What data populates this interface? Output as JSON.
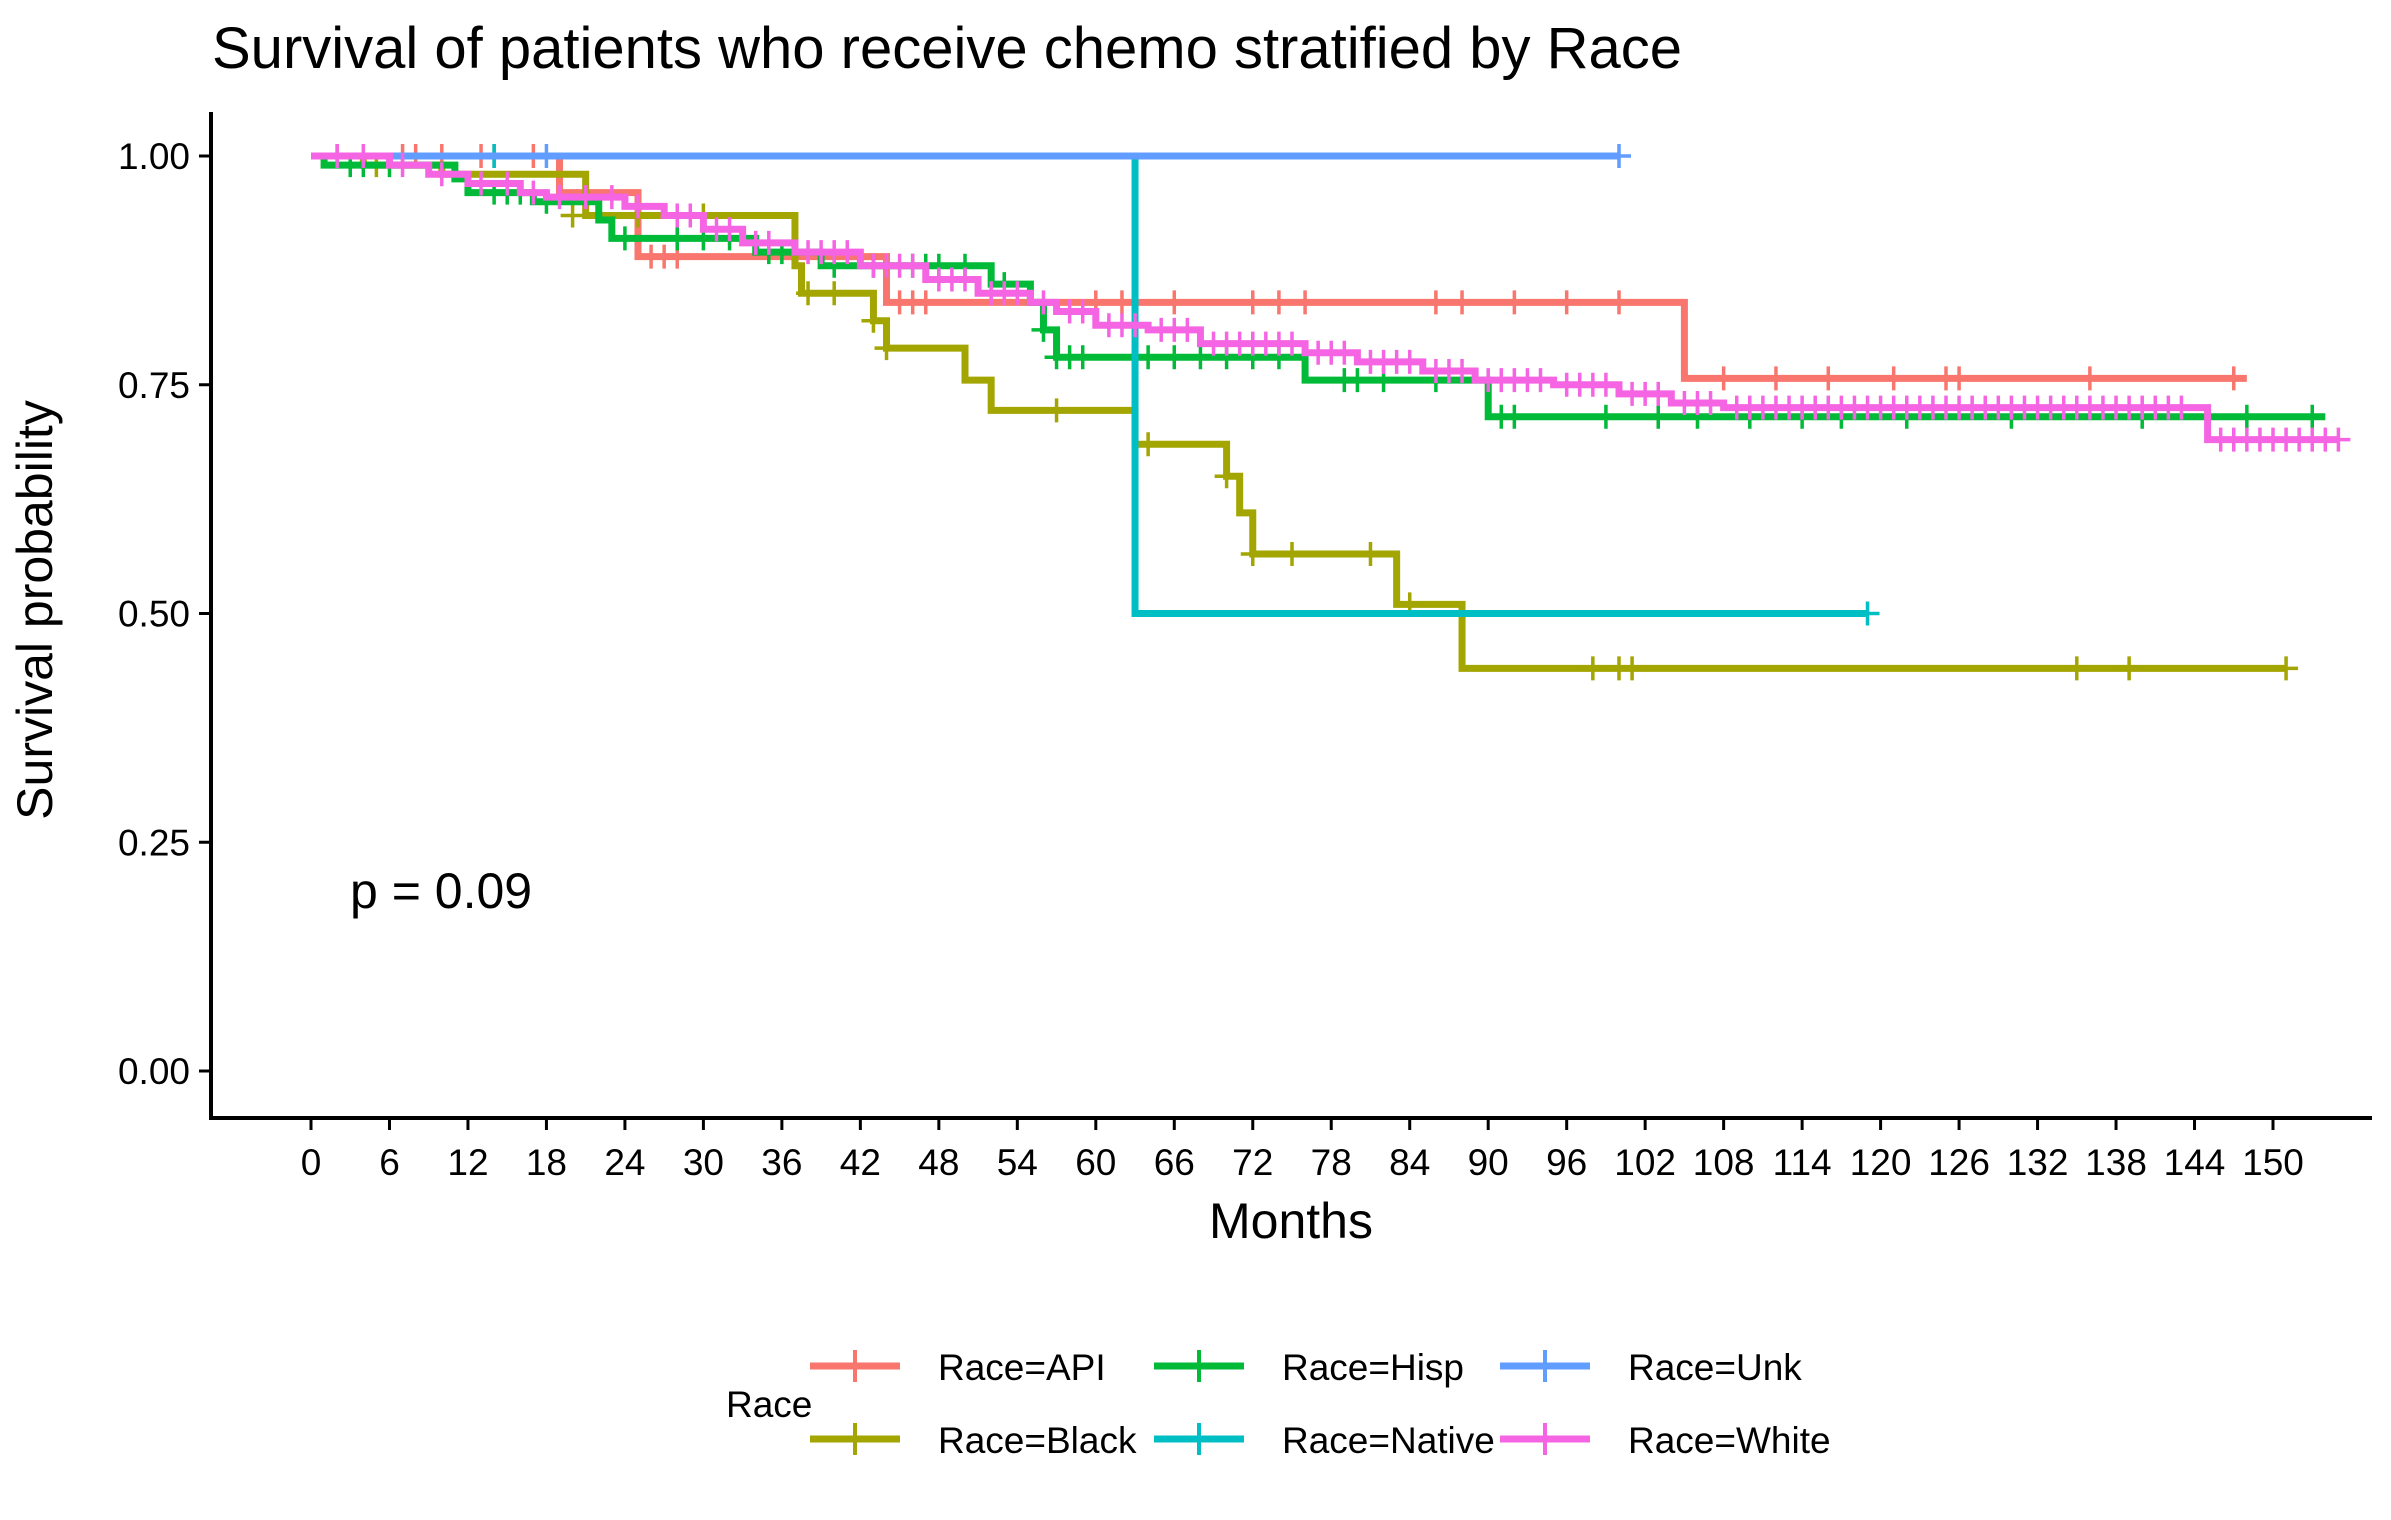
{
  "chart_data": {
    "type": "line",
    "subtype": "step",
    "title": "Survival of patients who receive chemo stratified by Race",
    "xlabel": "Months",
    "ylabel": "Survival probability",
    "xlim": [
      0,
      158
    ],
    "ylim": [
      0,
      1
    ],
    "x_ticks": [
      "0",
      "6",
      "12",
      "18",
      "24",
      "30",
      "36",
      "42",
      "48",
      "54",
      "60",
      "66",
      "72",
      "78",
      "84",
      "90",
      "96",
      "102",
      "108",
      "114",
      "120",
      "126",
      "132",
      "138",
      "144",
      "150"
    ],
    "y_ticks": [
      "0.00",
      "0.25",
      "0.50",
      "0.75",
      "1.00"
    ],
    "grid": false,
    "annotation": "p = 0.09",
    "legend": {
      "title": "Race",
      "placement": "bottom",
      "entries": [
        "Race=API",
        "Race=Hisp",
        "Race=Unk",
        "Race=Black",
        "Race=Native",
        "Race=White"
      ]
    },
    "series": [
      {
        "name": "Race=API",
        "color": "#F8766D",
        "steps": [
          [
            0,
            1.0
          ],
          [
            19,
            0.96
          ],
          [
            25,
            0.89
          ],
          [
            44,
            0.84
          ],
          [
            105,
            0.757
          ],
          [
            148,
            0.757
          ]
        ],
        "censored": [
          [
            2,
            1.0
          ],
          [
            7,
            1.0
          ],
          [
            8,
            1.0
          ],
          [
            10,
            1.0
          ],
          [
            13,
            1.0
          ],
          [
            14,
            1.0
          ],
          [
            17,
            1.0
          ],
          [
            26,
            0.89
          ],
          [
            27,
            0.89
          ],
          [
            28,
            0.89
          ],
          [
            45,
            0.84
          ],
          [
            46,
            0.84
          ],
          [
            47,
            0.84
          ],
          [
            60,
            0.84
          ],
          [
            62,
            0.84
          ],
          [
            66,
            0.84
          ],
          [
            72,
            0.84
          ],
          [
            74,
            0.84
          ],
          [
            76,
            0.84
          ],
          [
            86,
            0.84
          ],
          [
            88,
            0.84
          ],
          [
            92,
            0.84
          ],
          [
            96,
            0.84
          ],
          [
            100,
            0.84
          ],
          [
            108,
            0.757
          ],
          [
            112,
            0.757
          ],
          [
            116,
            0.757
          ],
          [
            121,
            0.757
          ],
          [
            125,
            0.757
          ],
          [
            126,
            0.757
          ],
          [
            136,
            0.757
          ],
          [
            147,
            0.757
          ]
        ]
      },
      {
        "name": "Race=Black",
        "color": "#A3A500",
        "steps": [
          [
            0,
            1.0
          ],
          [
            4,
            0.99
          ],
          [
            10,
            0.98
          ],
          [
            21,
            0.935
          ],
          [
            37,
            0.88
          ],
          [
            37.5,
            0.85
          ],
          [
            43,
            0.82
          ],
          [
            44,
            0.79
          ],
          [
            50,
            0.755
          ],
          [
            52,
            0.722
          ],
          [
            63,
            0.685
          ],
          [
            70,
            0.65
          ],
          [
            71,
            0.61
          ],
          [
            72,
            0.565
          ],
          [
            83,
            0.51
          ],
          [
            88,
            0.44
          ],
          [
            151,
            0.44
          ]
        ],
        "censored": [
          [
            5,
            0.99
          ],
          [
            20,
            0.935
          ],
          [
            25,
            0.935
          ],
          [
            30,
            0.935
          ],
          [
            38,
            0.85
          ],
          [
            40,
            0.85
          ],
          [
            43,
            0.82
          ],
          [
            44,
            0.79
          ],
          [
            57,
            0.722
          ],
          [
            64,
            0.685
          ],
          [
            70,
            0.65
          ],
          [
            72,
            0.565
          ],
          [
            75,
            0.565
          ],
          [
            81,
            0.565
          ],
          [
            84,
            0.51
          ],
          [
            98,
            0.44
          ],
          [
            100,
            0.44
          ],
          [
            101,
            0.44
          ],
          [
            135,
            0.44
          ],
          [
            139,
            0.44
          ],
          [
            151,
            0.44
          ]
        ]
      },
      {
        "name": "Race=Hisp",
        "color": "#00BA38",
        "steps": [
          [
            0,
            1.0
          ],
          [
            1,
            0.99
          ],
          [
            11,
            0.975
          ],
          [
            12,
            0.96
          ],
          [
            17,
            0.95
          ],
          [
            22,
            0.93
          ],
          [
            23,
            0.91
          ],
          [
            34,
            0.895
          ],
          [
            39,
            0.88
          ],
          [
            52,
            0.86
          ],
          [
            55,
            0.84
          ],
          [
            56,
            0.81
          ],
          [
            57,
            0.78
          ],
          [
            76,
            0.755
          ],
          [
            90,
            0.715
          ],
          [
            154,
            0.715
          ]
        ],
        "censored": [
          [
            3,
            0.99
          ],
          [
            4,
            0.99
          ],
          [
            6,
            0.99
          ],
          [
            14,
            0.96
          ],
          [
            15,
            0.96
          ],
          [
            16,
            0.96
          ],
          [
            18,
            0.95
          ],
          [
            24,
            0.91
          ],
          [
            28,
            0.91
          ],
          [
            30,
            0.91
          ],
          [
            32,
            0.91
          ],
          [
            35,
            0.895
          ],
          [
            36,
            0.895
          ],
          [
            40,
            0.88
          ],
          [
            43,
            0.88
          ],
          [
            46,
            0.88
          ],
          [
            47,
            0.88
          ],
          [
            48,
            0.88
          ],
          [
            50,
            0.88
          ],
          [
            53,
            0.86
          ],
          [
            56,
            0.81
          ],
          [
            57,
            0.78
          ],
          [
            58,
            0.78
          ],
          [
            59,
            0.78
          ],
          [
            64,
            0.78
          ],
          [
            66,
            0.78
          ],
          [
            68,
            0.78
          ],
          [
            70,
            0.78
          ],
          [
            72,
            0.78
          ],
          [
            74,
            0.78
          ],
          [
            79,
            0.755
          ],
          [
            80,
            0.755
          ],
          [
            82,
            0.755
          ],
          [
            86,
            0.755
          ],
          [
            91,
            0.715
          ],
          [
            92,
            0.715
          ],
          [
            99,
            0.715
          ],
          [
            103,
            0.715
          ],
          [
            106,
            0.715
          ],
          [
            110,
            0.715
          ],
          [
            114,
            0.715
          ],
          [
            117,
            0.715
          ],
          [
            122,
            0.715
          ],
          [
            130,
            0.715
          ],
          [
            140,
            0.715
          ],
          [
            148,
            0.715
          ],
          [
            153,
            0.715
          ]
        ]
      },
      {
        "name": "Race=Native",
        "color": "#00BFC4",
        "steps": [
          [
            0,
            1.0
          ],
          [
            63,
            0.5
          ],
          [
            119,
            0.5
          ]
        ],
        "censored": [
          [
            14,
            1.0
          ],
          [
            119,
            0.5
          ]
        ]
      },
      {
        "name": "Race=Unk",
        "color": "#619CFF",
        "steps": [
          [
            0,
            1.0
          ],
          [
            100,
            1.0
          ]
        ],
        "censored": [
          [
            18,
            1.0
          ],
          [
            100,
            1.0
          ]
        ]
      },
      {
        "name": "Race=White",
        "color": "#F564E3",
        "steps": [
          [
            0,
            1.0
          ],
          [
            6,
            0.99
          ],
          [
            9,
            0.98
          ],
          [
            12,
            0.97
          ],
          [
            16,
            0.96
          ],
          [
            18,
            0.955
          ],
          [
            24,
            0.945
          ],
          [
            27,
            0.935
          ],
          [
            30,
            0.92
          ],
          [
            33,
            0.905
          ],
          [
            37,
            0.895
          ],
          [
            42,
            0.88
          ],
          [
            47,
            0.865
          ],
          [
            51,
            0.85
          ],
          [
            55,
            0.84
          ],
          [
            57,
            0.83
          ],
          [
            60,
            0.815
          ],
          [
            64,
            0.81
          ],
          [
            68,
            0.795
          ],
          [
            76,
            0.785
          ],
          [
            80,
            0.775
          ],
          [
            85,
            0.765
          ],
          [
            89,
            0.755
          ],
          [
            95,
            0.75
          ],
          [
            100,
            0.74
          ],
          [
            104,
            0.73
          ],
          [
            108,
            0.725
          ],
          [
            145,
            0.69
          ],
          [
            155,
            0.69
          ]
        ],
        "censored": [
          [
            2,
            1.0
          ],
          [
            4,
            1.0
          ],
          [
            7,
            0.99
          ],
          [
            10,
            0.98
          ],
          [
            13,
            0.97
          ],
          [
            15,
            0.97
          ],
          [
            17,
            0.96
          ],
          [
            19,
            0.955
          ],
          [
            21,
            0.955
          ],
          [
            23,
            0.955
          ],
          [
            25,
            0.945
          ],
          [
            28,
            0.935
          ],
          [
            29,
            0.935
          ],
          [
            31,
            0.92
          ],
          [
            32,
            0.92
          ],
          [
            34,
            0.905
          ],
          [
            35,
            0.905
          ],
          [
            38,
            0.895
          ],
          [
            39,
            0.895
          ],
          [
            40,
            0.895
          ],
          [
            41,
            0.895
          ],
          [
            43,
            0.88
          ],
          [
            44,
            0.88
          ],
          [
            45,
            0.88
          ],
          [
            46,
            0.88
          ],
          [
            48,
            0.865
          ],
          [
            49,
            0.865
          ],
          [
            50,
            0.865
          ],
          [
            52,
            0.85
          ],
          [
            53,
            0.85
          ],
          [
            54,
            0.85
          ],
          [
            56,
            0.84
          ],
          [
            58,
            0.83
          ],
          [
            59,
            0.83
          ],
          [
            61,
            0.815
          ],
          [
            62,
            0.815
          ],
          [
            63,
            0.815
          ],
          [
            65,
            0.81
          ],
          [
            66,
            0.81
          ],
          [
            67,
            0.81
          ],
          [
            69,
            0.795
          ],
          [
            70,
            0.795
          ],
          [
            71,
            0.795
          ],
          [
            72,
            0.795
          ],
          [
            73,
            0.795
          ],
          [
            74,
            0.795
          ],
          [
            75,
            0.795
          ],
          [
            77,
            0.785
          ],
          [
            78,
            0.785
          ],
          [
            79,
            0.785
          ],
          [
            81,
            0.775
          ],
          [
            82,
            0.775
          ],
          [
            83,
            0.775
          ],
          [
            84,
            0.775
          ],
          [
            86,
            0.765
          ],
          [
            87,
            0.765
          ],
          [
            88,
            0.765
          ],
          [
            90,
            0.755
          ],
          [
            91,
            0.755
          ],
          [
            92,
            0.755
          ],
          [
            93,
            0.755
          ],
          [
            94,
            0.755
          ],
          [
            96,
            0.75
          ],
          [
            97,
            0.75
          ],
          [
            98,
            0.75
          ],
          [
            99,
            0.75
          ],
          [
            101,
            0.74
          ],
          [
            102,
            0.74
          ],
          [
            103,
            0.74
          ],
          [
            105,
            0.73
          ],
          [
            106,
            0.73
          ],
          [
            107,
            0.73
          ],
          [
            109,
            0.725
          ],
          [
            110,
            0.725
          ],
          [
            111,
            0.725
          ],
          [
            112,
            0.725
          ],
          [
            113,
            0.725
          ],
          [
            114,
            0.725
          ],
          [
            115,
            0.725
          ],
          [
            116,
            0.725
          ],
          [
            117,
            0.725
          ],
          [
            118,
            0.725
          ],
          [
            119,
            0.725
          ],
          [
            120,
            0.725
          ],
          [
            121,
            0.725
          ],
          [
            122,
            0.725
          ],
          [
            123,
            0.725
          ],
          [
            124,
            0.725
          ],
          [
            125,
            0.725
          ],
          [
            126,
            0.725
          ],
          [
            127,
            0.725
          ],
          [
            128,
            0.725
          ],
          [
            129,
            0.725
          ],
          [
            130,
            0.725
          ],
          [
            131,
            0.725
          ],
          [
            132,
            0.725
          ],
          [
            133,
            0.725
          ],
          [
            134,
            0.725
          ],
          [
            135,
            0.725
          ],
          [
            136,
            0.725
          ],
          [
            137,
            0.725
          ],
          [
            138,
            0.725
          ],
          [
            139,
            0.725
          ],
          [
            140,
            0.725
          ],
          [
            141,
            0.725
          ],
          [
            142,
            0.725
          ],
          [
            143,
            0.725
          ],
          [
            146,
            0.69
          ],
          [
            147,
            0.69
          ],
          [
            148,
            0.69
          ],
          [
            149,
            0.69
          ],
          [
            150,
            0.69
          ],
          [
            151,
            0.69
          ],
          [
            152,
            0.69
          ],
          [
            153,
            0.69
          ],
          [
            154,
            0.69
          ],
          [
            155,
            0.69
          ]
        ]
      }
    ]
  }
}
